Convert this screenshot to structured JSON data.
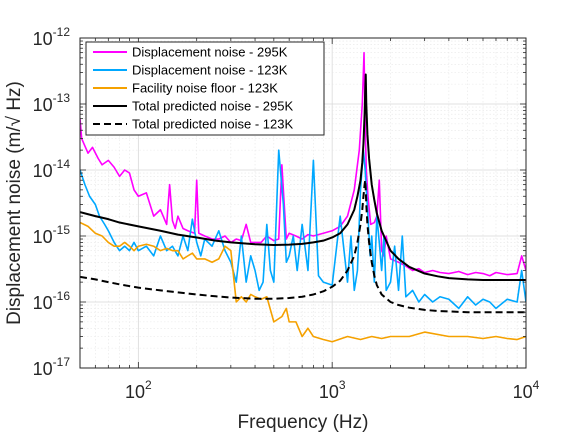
{
  "chart_data": {
    "type": "line",
    "title": "",
    "xlabel": "Frequency (Hz)",
    "ylabel_prefix": "Displacement noise (m/",
    "ylabel_radical": "√",
    "ylabel_suffix": " Hz)",
    "x_scale": "log",
    "y_scale": "log",
    "xlim": [
      50,
      10000
    ],
    "ylim": [
      1e-17,
      1e-12
    ],
    "grid": true,
    "legend_position": "top-left",
    "x_ticks": [
      {
        "value": 100,
        "base": "10",
        "exp": "2"
      },
      {
        "value": 1000,
        "base": "10",
        "exp": "3"
      },
      {
        "value": 10000,
        "base": "10",
        "exp": "4"
      }
    ],
    "y_ticks": [
      {
        "value": 1e-17,
        "base": "10",
        "exp": "-17"
      },
      {
        "value": 1e-16,
        "base": "10",
        "exp": "-16"
      },
      {
        "value": 1e-15,
        "base": "10",
        "exp": "-15"
      },
      {
        "value": 1e-14,
        "base": "10",
        "exp": "-14"
      },
      {
        "value": 1e-13,
        "base": "10",
        "exp": "-13"
      },
      {
        "value": 1e-12,
        "base": "10",
        "exp": "-12"
      }
    ],
    "series": [
      {
        "name": "Displacement noise - 295K",
        "color": "#ff00ff",
        "dash": "solid",
        "x": [
          50,
          51,
          55,
          58,
          62,
          65,
          70,
          75,
          80,
          85,
          90,
          95,
          100,
          110,
          120,
          130,
          140,
          145,
          150,
          155,
          160,
          170,
          180,
          195,
          200,
          205,
          220,
          240,
          260,
          280,
          300,
          320,
          340,
          360,
          380,
          400,
          430,
          460,
          500,
          530,
          550,
          580,
          600,
          650,
          700,
          750,
          800,
          900,
          1000,
          1100,
          1200,
          1300,
          1380,
          1430,
          1460,
          1480,
          1500,
          1530,
          1580,
          1650,
          1700,
          1750,
          1800,
          1850,
          1900,
          2000,
          2200,
          2400,
          2600,
          2800,
          3000,
          3300,
          3600,
          4000,
          4500,
          5000,
          5500,
          6000,
          6500,
          7000,
          8000,
          9000,
          9500,
          10000
        ],
        "y": [
          6e-14,
          3e-14,
          1.8e-14,
          2.2e-14,
          1.5e-14,
          1.2e-14,
          1.4e-14,
          1.1e-14,
          8e-15,
          1e-14,
          9e-15,
          5e-15,
          4e-15,
          4.5e-15,
          2e-15,
          2.5e-15,
          1.5e-15,
          6e-15,
          1.7e-15,
          1.3e-15,
          2e-15,
          1.3e-15,
          1.2e-15,
          1.1e-15,
          7e-15,
          1.1e-15,
          1e-15,
          9e-16,
          9e-16,
          1e-15,
          8e-16,
          9e-16,
          8.5e-16,
          1.5e-15,
          8e-16,
          8e-16,
          8e-16,
          1e-15,
          8.5e-16,
          9e-16,
          1.2e-14,
          9e-16,
          1.1e-15,
          1e-15,
          9e-16,
          1.05e-15,
          1e-15,
          1.1e-15,
          1.2e-15,
          1.4e-15,
          2e-15,
          5e-15,
          2e-14,
          1e-13,
          6e-13,
          5e-14,
          1e-14,
          4e-15,
          1.5e-15,
          1.6e-15,
          2e-15,
          7e-15,
          6e-16,
          5e-16,
          1e-15,
          4.5e-16,
          4e-16,
          3.5e-16,
          3e-16,
          3.2e-16,
          2.8e-16,
          3e-16,
          2.8e-16,
          2.7e-16,
          2.9e-16,
          2.6e-16,
          2.8e-16,
          2.7e-16,
          2.5e-16,
          2.8e-16,
          2.6e-16,
          2.7e-16,
          5e-16,
          3e-16
        ]
      },
      {
        "name": "Displacement noise - 123K",
        "color": "#00a8ff",
        "dash": "solid",
        "x": [
          50,
          53,
          56,
          60,
          63,
          67,
          70,
          75,
          80,
          85,
          90,
          95,
          100,
          110,
          120,
          130,
          140,
          150,
          160,
          170,
          180,
          190,
          200,
          210,
          220,
          240,
          260,
          280,
          300,
          320,
          340,
          360,
          380,
          400,
          420,
          440,
          460,
          480,
          500,
          530,
          560,
          580,
          600,
          630,
          660,
          700,
          750,
          800,
          850,
          900,
          1000,
          1100,
          1200,
          1250,
          1300,
          1350,
          1400,
          1450,
          1480,
          1500,
          1530,
          1570,
          1600,
          1650,
          1700,
          1750,
          1800,
          1850,
          1900,
          2000,
          2100,
          2200,
          2300,
          2400,
          2600,
          2800,
          3000,
          3300,
          3600,
          4000,
          4500,
          5000,
          5500,
          6000,
          6500,
          7000,
          8000,
          9000,
          9500,
          10000
        ],
        "y": [
          1e-14,
          6e-15,
          4e-15,
          3e-15,
          2e-15,
          1.5e-15,
          1.2e-15,
          8e-16,
          6e-16,
          7e-16,
          6e-16,
          8e-16,
          6e-16,
          7e-16,
          5e-16,
          1e-15,
          6e-16,
          7e-16,
          5e-16,
          1e-15,
          6e-16,
          1.8e-15,
          8e-16,
          5e-16,
          9e-16,
          7e-16,
          1.2e-15,
          6e-16,
          4e-16,
          2e-16,
          1e-15,
          2e-16,
          5e-16,
          3e-16,
          1.5e-16,
          2e-16,
          1.5e-15,
          3e-16,
          2e-16,
          2e-14,
          3e-15,
          4e-16,
          5e-16,
          1e-15,
          3e-16,
          1.5e-15,
          3e-16,
          1.4e-14,
          2.5e-16,
          2e-16,
          1.8e-16,
          2e-15,
          2e-16,
          1e-15,
          1.5e-16,
          3e-16,
          5e-15,
          2e-14,
          1e-14,
          5e-15,
          2e-15,
          5e-16,
          1e-15,
          2e-16,
          2e-15,
          8e-16,
          3e-16,
          1e-15,
          1.5e-16,
          2e-16,
          7e-16,
          1.5e-16,
          1e-15,
          1.2e-16,
          1.5e-16,
          1e-16,
          1.3e-16,
          1e-16,
          1.2e-16,
          1.1e-16,
          8e-17,
          1.2e-16,
          9e-17,
          1.1e-16,
          1e-16,
          8e-17,
          1.1e-16,
          1e-16,
          3e-16,
          1e-16
        ]
      },
      {
        "name": "Facility noise floor - 123K",
        "color": "#f5a100",
        "dash": "solid",
        "x": [
          50,
          55,
          60,
          65,
          70,
          75,
          80,
          85,
          90,
          95,
          100,
          110,
          120,
          130,
          140,
          150,
          160,
          170,
          180,
          190,
          200,
          220,
          240,
          260,
          280,
          300,
          320,
          340,
          360,
          380,
          400,
          430,
          460,
          500,
          550,
          580,
          600,
          650,
          700,
          750,
          800,
          900,
          1000,
          1200,
          1400,
          1600,
          1800,
          2000,
          2500,
          3000,
          4000,
          5000,
          6000,
          7000,
          8000,
          9000,
          10000
        ],
        "y": [
          1.6e-15,
          1.4e-15,
          1.1e-15,
          1e-15,
          8e-16,
          7e-16,
          7e-16,
          8e-16,
          7e-16,
          6e-16,
          7e-16,
          7.5e-16,
          7e-16,
          6e-16,
          6.5e-16,
          6e-16,
          6e-16,
          4.5e-16,
          5e-16,
          5.5e-16,
          4.5e-16,
          4.5e-16,
          4e-16,
          4.5e-16,
          7e-16,
          6e-16,
          1e-16,
          1.2e-16,
          1e-16,
          1.3e-16,
          1.2e-16,
          1.1e-16,
          1.2e-16,
          5e-17,
          6e-17,
          8e-17,
          5e-17,
          5e-17,
          3e-17,
          4e-17,
          3e-17,
          2.7e-17,
          2.5e-17,
          3e-17,
          2.7e-17,
          3e-17,
          2.8e-17,
          3e-17,
          3e-17,
          3.5e-17,
          3e-17,
          3e-17,
          2.8e-17,
          3e-17,
          2.8e-17,
          2.7e-17,
          3e-17
        ]
      },
      {
        "name": "Total predicted noise - 295K",
        "color": "#000000",
        "dash": "solid",
        "x": [
          50,
          60,
          70,
          80,
          100,
          130,
          160,
          200,
          250,
          300,
          400,
          500,
          600,
          700,
          800,
          900,
          1000,
          1100,
          1200,
          1300,
          1350,
          1400,
          1430,
          1450,
          1470,
          1480,
          1490,
          1500,
          1520,
          1550,
          1600,
          1650,
          1700,
          1800,
          2000,
          2200,
          2500,
          3000,
          3500,
          4000,
          5000,
          6000,
          7000,
          8000,
          10000
        ],
        "y": [
          2.3e-15,
          2e-15,
          1.8e-15,
          1.6e-15,
          1.4e-15,
          1.2e-15,
          1.05e-15,
          9.5e-16,
          8.5e-16,
          8e-16,
          7.5e-16,
          7.3e-16,
          7.4e-16,
          7.6e-16,
          8e-16,
          8.5e-16,
          9.5e-16,
          1.1e-15,
          1.5e-15,
          2.5e-15,
          4e-15,
          7e-15,
          1.3e-14,
          2.5e-14,
          7e-14,
          1.5e-13,
          2.8e-13,
          1e-13,
          3.5e-14,
          1.5e-14,
          6e-15,
          3.5e-15,
          2.2e-15,
          1.2e-15,
          6e-16,
          4.5e-16,
          3.4e-16,
          2.7e-16,
          2.45e-16,
          2.3e-16,
          2.2e-16,
          2.15e-16,
          2.15e-16,
          2.15e-16,
          2.15e-16
        ]
      },
      {
        "name": "Total predicted noise - 123K",
        "color": "#000000",
        "dash": "dashed",
        "x": [
          50,
          60,
          70,
          80,
          100,
          130,
          160,
          200,
          250,
          300,
          400,
          500,
          600,
          700,
          800,
          900,
          1000,
          1100,
          1200,
          1300,
          1350,
          1400,
          1430,
          1450,
          1470,
          1480,
          1490,
          1500,
          1520,
          1550,
          1600,
          1650,
          1700,
          1800,
          2000,
          2200,
          2500,
          3000,
          3500,
          4000,
          5000,
          6000,
          7000,
          8000,
          10000
        ],
        "y": [
          2.4e-16,
          2.2e-16,
          2e-16,
          1.85e-16,
          1.65e-16,
          1.5e-16,
          1.4e-16,
          1.3e-16,
          1.22e-16,
          1.17e-16,
          1.12e-16,
          1.12e-16,
          1.15e-16,
          1.2e-16,
          1.3e-16,
          1.45e-16,
          1.7e-16,
          2.1e-16,
          3e-16,
          5e-16,
          8e-16,
          1.5e-15,
          2.5e-15,
          4e-15,
          6e-15,
          7e-15,
          5e-15,
          3e-15,
          1.5e-15,
          8e-16,
          4e-16,
          2.5e-16,
          1.8e-16,
          1.3e-16,
          1e-16,
          9e-17,
          8.2e-17,
          7.6e-17,
          7.3e-17,
          7.2e-17,
          7e-17,
          7e-17,
          7e-17,
          7e-17,
          7e-17
        ]
      }
    ]
  }
}
